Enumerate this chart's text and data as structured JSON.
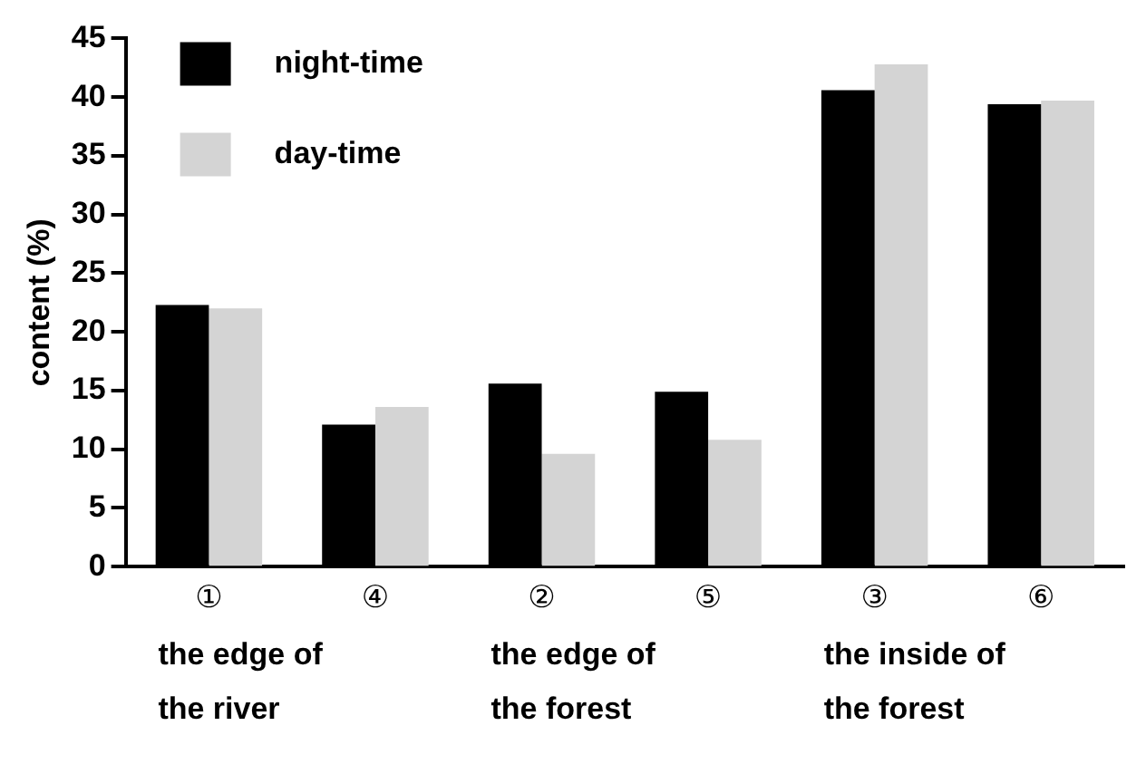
{
  "chart_data": {
    "type": "bar",
    "ylabel": "content (%)",
    "categories": [
      "①",
      "④",
      "②",
      "⑤",
      "③",
      "⑥"
    ],
    "series": [
      {
        "name": "night-time",
        "color": "#000000",
        "values": [
          22.3,
          12.1,
          15.6,
          14.9,
          40.6,
          39.4
        ]
      },
      {
        "name": "day-time",
        "color": "#d4d4d4",
        "values": [
          22.0,
          13.6,
          9.6,
          10.8,
          42.8,
          39.7
        ]
      }
    ],
    "ylim": [
      0,
      45
    ],
    "yticks": [
      0,
      5,
      10,
      15,
      20,
      25,
      30,
      35,
      40,
      45
    ],
    "legend": "top left",
    "grid": false,
    "annotations": [
      "the edge of",
      "the edge of",
      "the inside of",
      "the river",
      "the forest",
      "the forest"
    ]
  }
}
